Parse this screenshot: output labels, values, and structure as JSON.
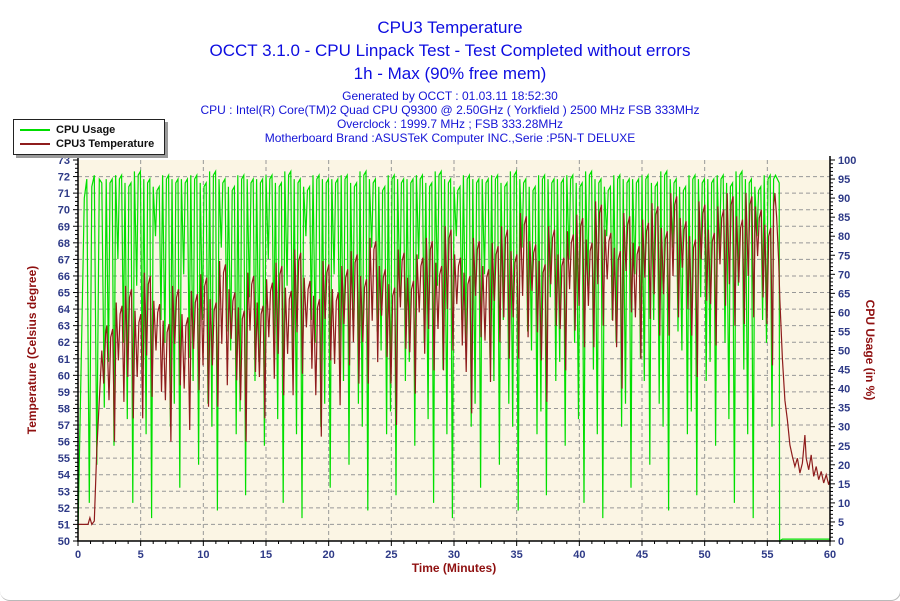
{
  "header": {
    "title": "CPU3 Temperature",
    "subtitle": "OCCT 3.1.0 - CPU Linpack Test - Test Completed without errors",
    "subtitle2": "1h - Max (90% free mem)",
    "info_lines": [
      "Generated by OCCT : 01.03.11 18:52:30",
      "CPU : Intel(R) Core(TM)2 Quad CPU Q9300 @ 2.50GHz ( Yorkfield ) 2500 MHz FSB 333MHz",
      "Overclock : 1999.7 MHz ; FSB 333.28MHz",
      "Motherboard Brand :ASUSTeK Computer INC.,Serie :P5N-T DELUXE"
    ]
  },
  "legend": {
    "items": [
      {
        "label": "CPU Usage",
        "color": "#00dd00"
      },
      {
        "label": "CPU3 Temperature",
        "color": "#8e1c1c"
      }
    ]
  },
  "colors": {
    "title_blue": "#0d0de0",
    "info_blue": "#1414d6",
    "tick_label": "#2e3a87",
    "axis_title": "#8f1010",
    "usage_line": "#00df00",
    "temp_line": "#8e1c1c",
    "grid": "#989898",
    "axis": "#000000",
    "plot_bg": "#fbf5e4",
    "panel_border": "#b9b9b9"
  },
  "chart_data": {
    "type": "line",
    "title": "CPU3 Temperature",
    "xlabel": "Time (Minutes)",
    "ylabel_left": "Temperature (Celsius degree)",
    "ylabel_right": "CPU Usage (in %)",
    "x_range": [
      0,
      60
    ],
    "x_major": 5,
    "x_minor": 1,
    "y_left_range": [
      50,
      73
    ],
    "y_left_major": 1,
    "y_left_minor": 0.25,
    "y_right_range": [
      0,
      100
    ],
    "y_right_major": 5,
    "y_right_minor": 1,
    "grid": "dashed",
    "legend_position": "top-left",
    "cycles": {
      "t0": 2.25,
      "dt": 0.75,
      "columns": [
        "usage_high_pct",
        "usage_low_pct",
        "temp_high_c",
        "temp_low_c"
      ],
      "rows": [
        [
          95,
          25,
          63.0,
          56.0
        ],
        [
          96,
          52,
          64.4,
          58.4
        ],
        [
          94,
          10,
          65.4,
          57.4
        ],
        [
          97,
          45,
          63.9,
          57.4
        ],
        [
          95,
          6,
          66.2,
          58.7
        ],
        [
          93,
          58,
          64.5,
          59.0
        ],
        [
          96,
          30,
          63.3,
          56.0
        ],
        [
          95,
          14,
          65.4,
          59.4
        ],
        [
          95,
          48,
          63.7,
          56.7
        ],
        [
          96,
          20,
          65.1,
          59.1
        ],
        [
          94,
          36,
          66.1,
          58.1
        ],
        [
          97,
          8,
          64.6,
          58.1
        ],
        [
          95,
          55,
          66.9,
          59.4
        ],
        [
          93,
          28,
          65.2,
          59.7
        ],
        [
          96,
          12,
          64.1,
          56.0
        ],
        [
          95,
          42,
          66.2,
          60.2
        ],
        [
          95,
          25,
          64.4,
          57.4
        ],
        [
          96,
          52,
          65.8,
          59.8
        ],
        [
          94,
          10,
          66.8,
          58.8
        ],
        [
          97,
          45,
          65.3,
          58.8
        ],
        [
          95,
          6,
          67.6,
          60.1
        ],
        [
          93,
          58,
          65.9,
          60.4
        ],
        [
          96,
          30,
          64.8,
          56.3
        ],
        [
          95,
          14,
          66.9,
          60.9
        ],
        [
          95,
          48,
          65.2,
          58.2
        ],
        [
          96,
          20,
          66.6,
          60.6
        ],
        [
          94,
          36,
          67.5,
          59.5
        ],
        [
          97,
          8,
          66.0,
          59.5
        ],
        [
          95,
          55,
          68.3,
          60.8
        ],
        [
          93,
          28,
          66.6,
          61.1
        ],
        [
          96,
          12,
          65.5,
          57.0
        ],
        [
          95,
          42,
          67.6,
          61.6
        ],
        [
          95,
          25,
          65.9,
          58.9
        ],
        [
          96,
          52,
          67.3,
          61.3
        ],
        [
          94,
          10,
          68.3,
          60.3
        ],
        [
          97,
          45,
          66.8,
          60.3
        ],
        [
          95,
          6,
          69.0,
          61.5
        ],
        [
          93,
          58,
          67.3,
          61.8
        ],
        [
          96,
          30,
          66.2,
          57.7
        ],
        [
          95,
          14,
          68.3,
          62.3
        ],
        [
          95,
          48,
          66.6,
          59.6
        ],
        [
          96,
          20,
          68.0,
          62.0
        ],
        [
          94,
          36,
          69.0,
          61.0
        ],
        [
          97,
          8,
          67.5,
          61.0
        ],
        [
          95,
          55,
          69.8,
          62.3
        ],
        [
          93,
          28,
          68.1,
          62.6
        ],
        [
          96,
          12,
          66.9,
          58.4
        ],
        [
          95,
          42,
          69.0,
          63.0
        ],
        [
          95,
          25,
          67.3,
          60.3
        ],
        [
          96,
          52,
          68.7,
          62.7
        ],
        [
          94,
          10,
          69.7,
          61.7
        ],
        [
          97,
          45,
          68.2,
          61.7
        ],
        [
          95,
          6,
          70.5,
          63.0
        ],
        [
          93,
          58,
          68.8,
          63.3
        ],
        [
          96,
          30,
          67.7,
          59.2
        ],
        [
          95,
          14,
          69.8,
          63.8
        ],
        [
          95,
          48,
          68.0,
          61.0
        ],
        [
          96,
          20,
          69.4,
          63.4
        ],
        [
          94,
          36,
          70.4,
          62.4
        ],
        [
          97,
          8,
          68.9,
          62.4
        ],
        [
          95,
          55,
          71.0,
          63.5
        ],
        [
          93,
          28,
          69.5,
          64.0
        ],
        [
          96,
          12,
          68.4,
          59.9
        ],
        [
          95,
          42,
          70.5,
          64.5
        ],
        [
          95,
          25,
          68.8,
          61.8
        ],
        [
          96,
          52,
          70.2,
          64.2
        ],
        [
          94,
          10,
          71.0,
          63.0
        ],
        [
          97,
          45,
          69.6,
          63.1
        ],
        [
          95,
          6,
          71.0,
          63.5
        ],
        [
          93,
          58,
          70.2,
          64.7
        ],
        [
          96,
          30,
          69.1,
          60.6
        ]
      ]
    },
    "series": [
      {
        "name": "CPU Usage",
        "axis": "right",
        "color": "#00df00",
        "lead_points": [
          [
            0,
            3
          ],
          [
            0.3,
            55
          ],
          [
            0.5,
            90
          ],
          [
            0.7,
            95
          ],
          [
            0.9,
            10
          ],
          [
            1.1,
            93
          ],
          [
            1.3,
            96
          ],
          [
            1.5,
            20
          ],
          [
            1.7,
            95
          ],
          [
            1.9,
            94
          ],
          [
            2.1,
            35
          ]
        ],
        "tail_points": [
          [
            55.5,
            95
          ],
          [
            55.65,
            96
          ],
          [
            55.8,
            95
          ],
          [
            55.95,
            94
          ],
          [
            55.98,
            0
          ],
          [
            56.2,
            0.5
          ],
          [
            57,
            0.5
          ],
          [
            58,
            0.5
          ],
          [
            59,
            0.5
          ],
          [
            60,
            0.5
          ]
        ]
      },
      {
        "name": "CPU3 Temperature",
        "axis": "left",
        "color": "#8e1c1c",
        "lead_points": [
          [
            0,
            51
          ],
          [
            0.8,
            51
          ],
          [
            0.95,
            51.4
          ],
          [
            1.1,
            51
          ],
          [
            1.3,
            51.2
          ],
          [
            1.5,
            55.5
          ],
          [
            1.7,
            58.5
          ],
          [
            1.9,
            61.5
          ],
          [
            2.05,
            59.5
          ],
          [
            2.2,
            62.5
          ]
        ],
        "tail_points": [
          [
            55.5,
            70.2
          ],
          [
            55.6,
            71
          ],
          [
            55.75,
            69.5
          ],
          [
            55.9,
            67
          ],
          [
            56.0,
            64.5
          ],
          [
            56.2,
            61
          ],
          [
            56.4,
            58.5
          ],
          [
            56.6,
            57.3
          ],
          [
            56.8,
            55.8
          ],
          [
            57.0,
            55.1
          ],
          [
            57.2,
            54.5
          ],
          [
            57.4,
            55.0
          ],
          [
            57.6,
            54.1
          ],
          [
            57.8,
            54.7
          ],
          [
            58.0,
            56.4
          ],
          [
            58.1,
            55.0
          ],
          [
            58.3,
            54.3
          ],
          [
            58.5,
            55.2
          ],
          [
            58.7,
            53.9
          ],
          [
            58.9,
            54.5
          ],
          [
            59.1,
            53.7
          ],
          [
            59.3,
            54.2
          ],
          [
            59.5,
            53.5
          ],
          [
            59.7,
            54.0
          ],
          [
            59.9,
            53.4
          ],
          [
            60,
            53.7
          ]
        ]
      }
    ]
  }
}
